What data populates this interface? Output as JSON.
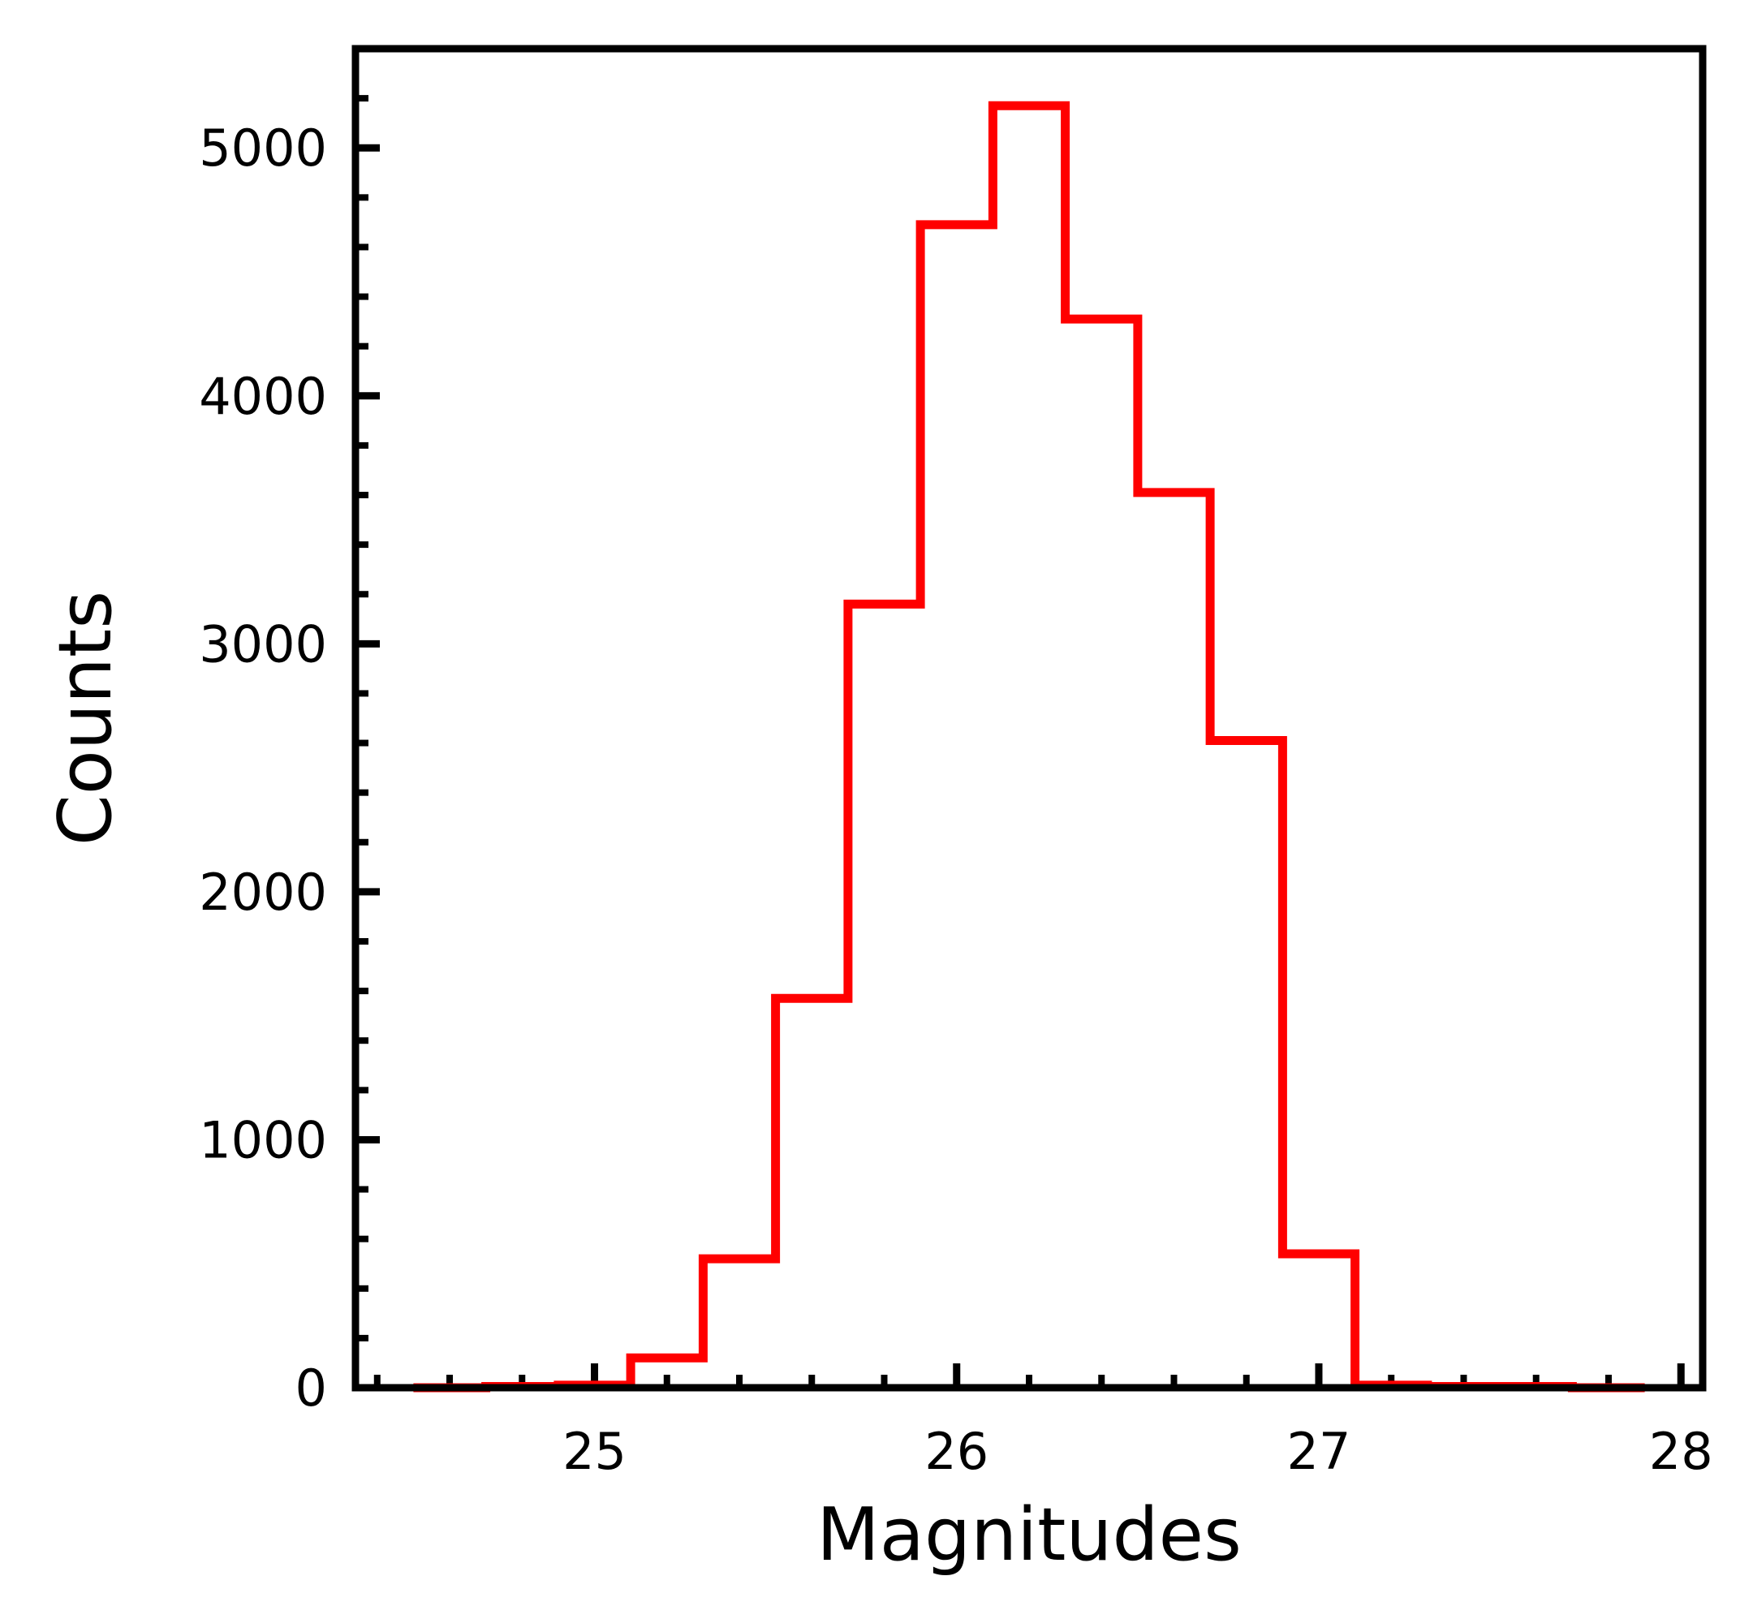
{
  "chart_data": {
    "type": "histogram",
    "title": "",
    "xlabel": "Magnitudes",
    "ylabel": "Counts",
    "xlim": [
      24.34,
      28.06
    ],
    "ylim": [
      0,
      5400
    ],
    "x_ticks": [
      25,
      26,
      27,
      28
    ],
    "x_tick_labels": [
      "25",
      "26",
      "27",
      "28"
    ],
    "y_ticks": [
      0,
      1000,
      2000,
      3000,
      4000,
      5000
    ],
    "y_tick_labels": [
      "0",
      "1000",
      "2000",
      "3000",
      "4000",
      "5000"
    ],
    "grid": false,
    "legend": "none",
    "bin_edges": [
      24.5,
      24.7,
      24.9,
      25.1,
      25.3,
      25.5,
      25.7,
      25.9,
      26.1,
      26.3,
      26.5,
      26.7,
      26.9,
      27.1,
      27.3,
      27.5,
      27.7,
      27.9
    ],
    "counts": [
      0,
      5,
      10,
      120,
      520,
      1570,
      3160,
      4690,
      5170,
      4310,
      3610,
      2610,
      540,
      10,
      5,
      5,
      0
    ],
    "series": [
      {
        "values": [
          0,
          5,
          10,
          120,
          520,
          1570,
          3160,
          4690,
          5170,
          4310,
          3610,
          2610,
          540,
          10,
          5,
          5,
          0
        ],
        "color": "#ff0000"
      }
    ],
    "colors": {
      "line": "#ff0000",
      "axes": "#000000"
    }
  }
}
